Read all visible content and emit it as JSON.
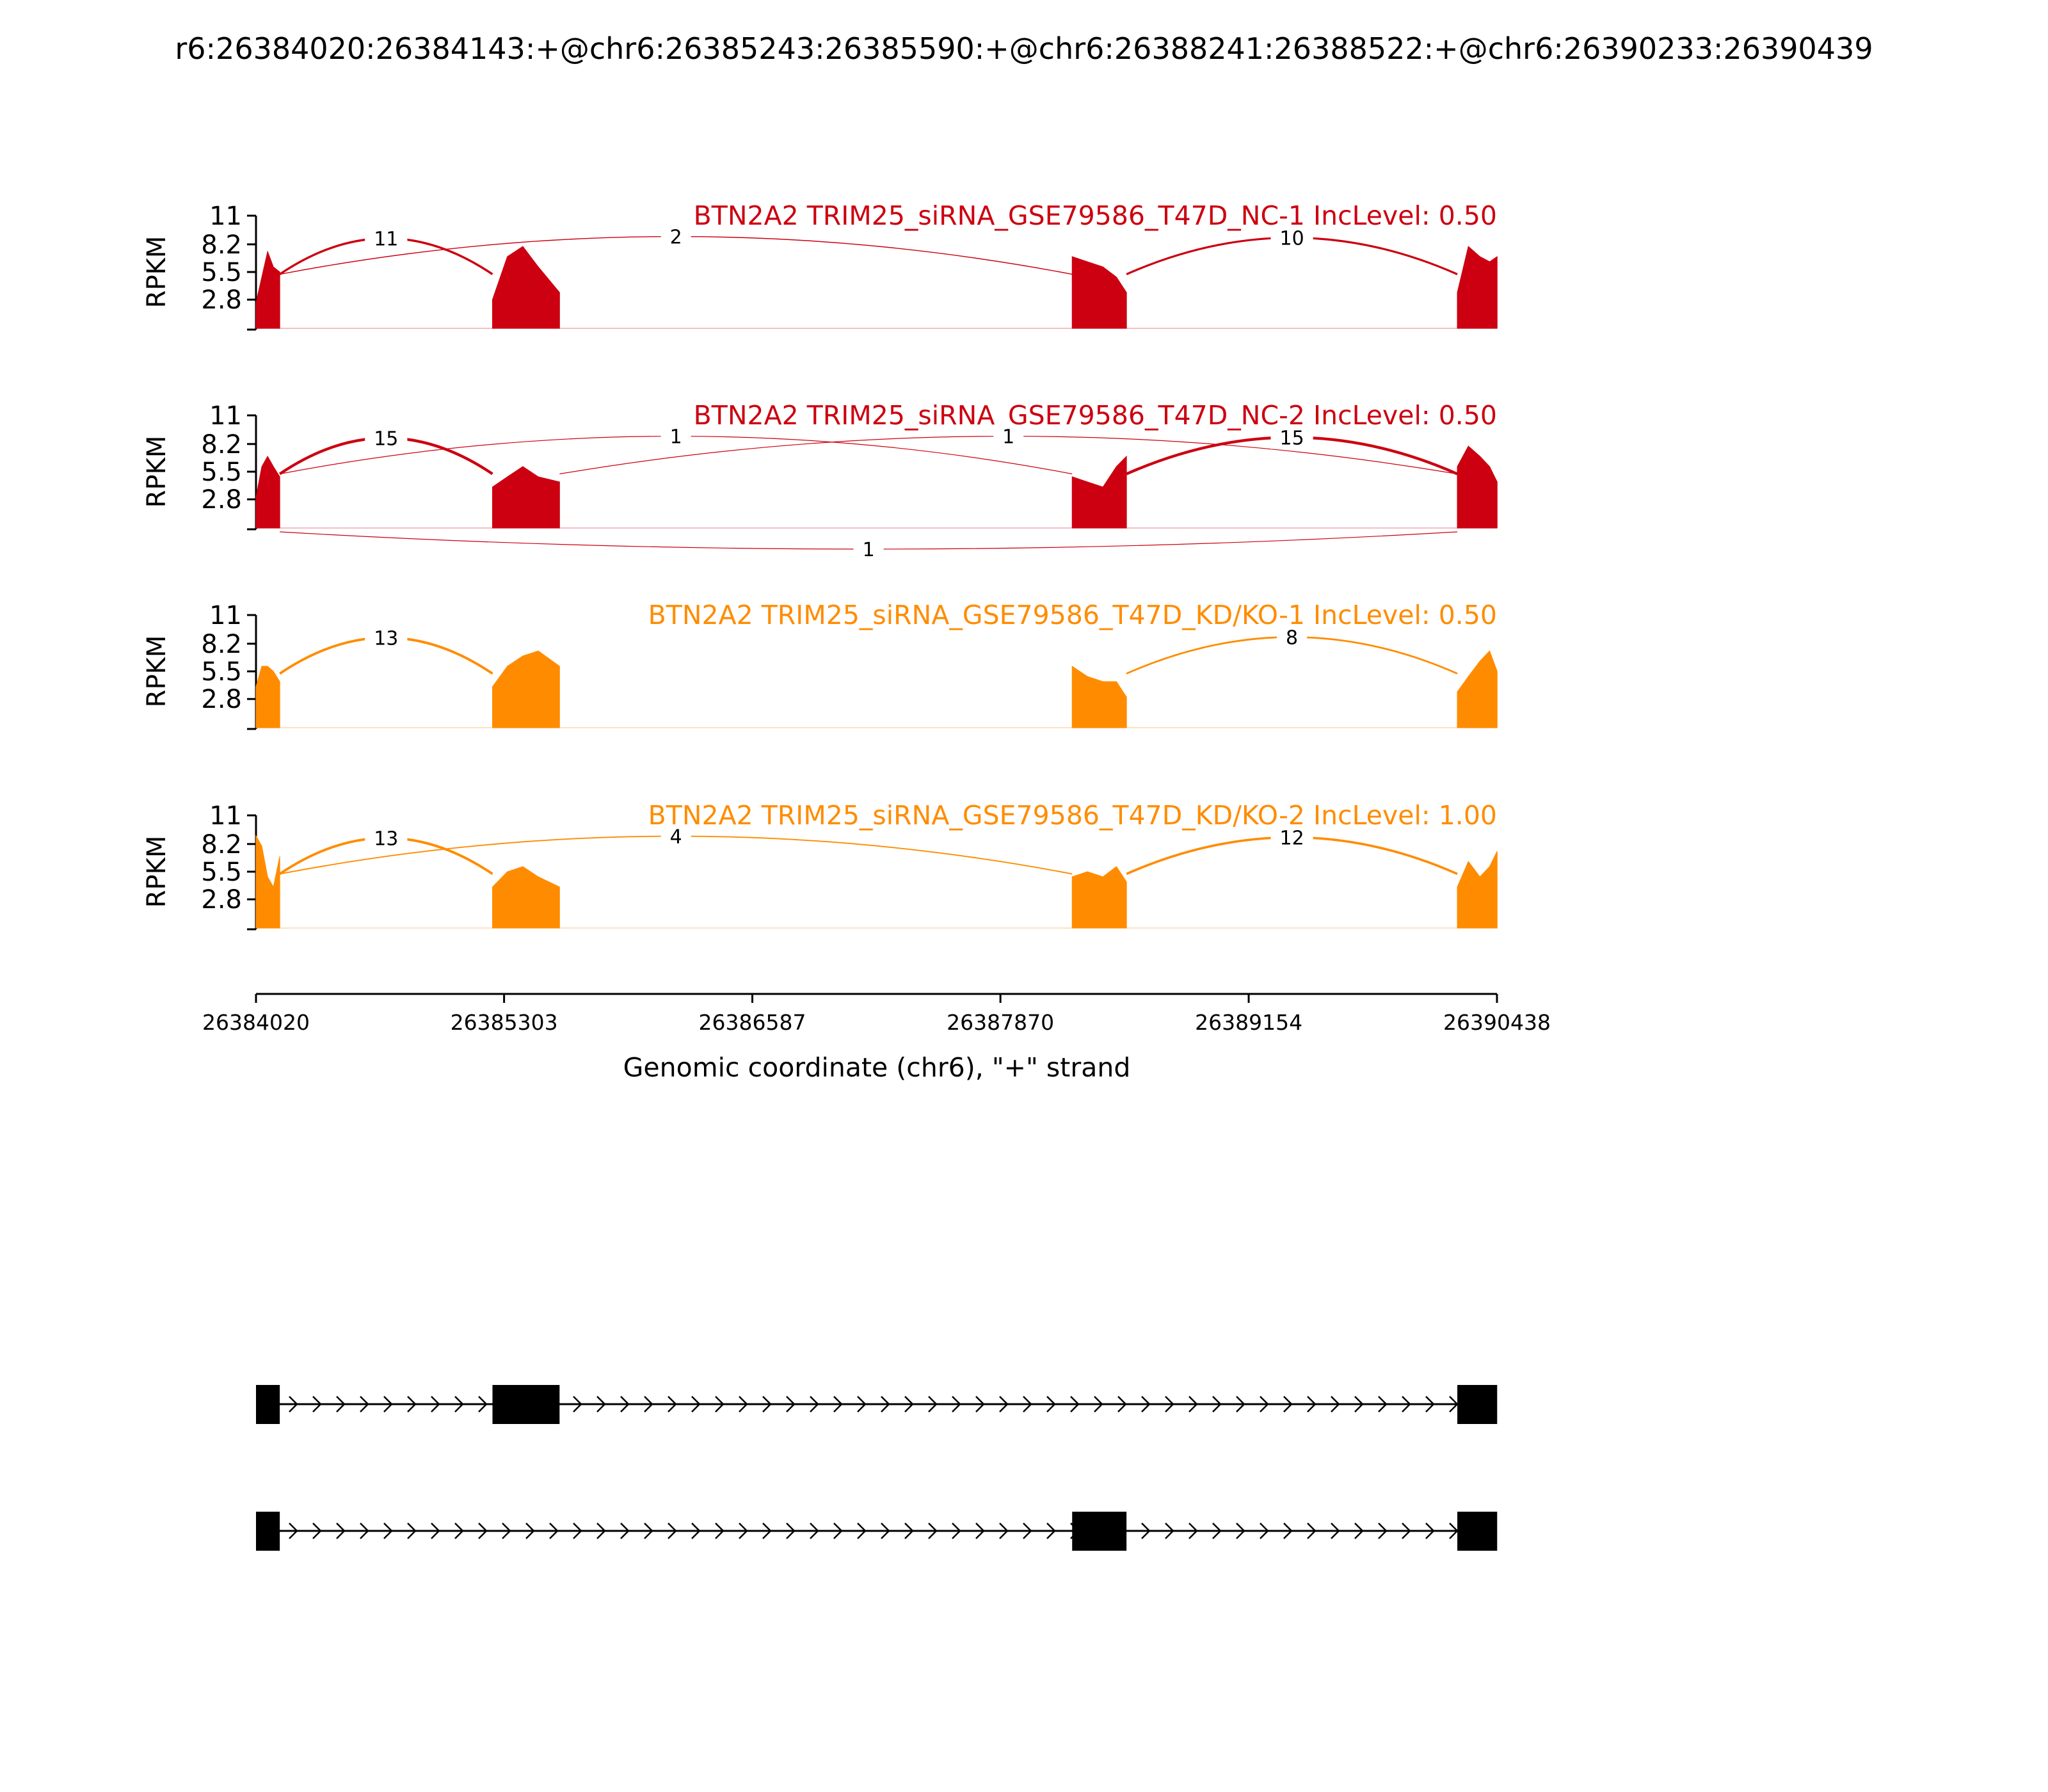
{
  "chart_data": {
    "type": "sashimi",
    "title": "r6:26384020:26384143:+@chr6:26385243:26385590:+@chr6:26388241:26388522:+@chr6:26390233:26390439",
    "xlabel": "Genomic coordinate (chr6), \"+\" strand",
    "ylabel": "RPKM",
    "xlim": [
      26384020,
      26390438
    ],
    "xticks": [
      26384020,
      26385303,
      26386587,
      26387870,
      26389154,
      26390438
    ],
    "ylim": [
      0,
      11
    ],
    "yticks": [
      2.8,
      5.5,
      8.2,
      11
    ],
    "x": [
      26384020,
      26384050,
      26384080,
      26384110,
      26384143,
      26384700,
      26385243,
      26385320,
      26385400,
      26385480,
      26385590,
      26386900,
      26388241,
      26388320,
      26388400,
      26388470,
      26388522,
      26389300,
      26390233,
      26390290,
      26390350,
      26390400,
      26390439
    ],
    "panels": [
      {
        "label": "BTN2A2 TRIM25_siRNA_GSE79586_T47D_NC-1 IncLevel: 0.50",
        "color": "#cc0010",
        "values": [
          2.5,
          5,
          7.5,
          6,
          5.5,
          null,
          2.8,
          7,
          8,
          6,
          3.5,
          null,
          7,
          6.5,
          6,
          5,
          3.5,
          null,
          3.5,
          8,
          7,
          6.5,
          7
        ],
        "junctions": [
          {
            "count": 11,
            "start": 26384143,
            "end": 26385243,
            "side": "above"
          },
          {
            "count": 2,
            "start": 26384143,
            "end": 26388241,
            "side": "above"
          },
          {
            "count": 10,
            "start": 26388522,
            "end": 26390233,
            "side": "above"
          }
        ]
      },
      {
        "label": "BTN2A2 TRIM25_siRNA_GSE79586_T47D_NC-2 IncLevel: 0.50",
        "color": "#cc0010",
        "values": [
          3,
          6,
          7,
          6,
          5,
          null,
          4,
          5,
          6,
          5,
          4.5,
          null,
          5,
          4.5,
          4,
          6,
          7,
          null,
          6,
          8,
          7,
          6,
          4.5
        ],
        "junctions": [
          {
            "count": 15,
            "start": 26384143,
            "end": 26385243,
            "side": "above"
          },
          {
            "count": 1,
            "start": 26384143,
            "end": 26388241,
            "side": "above"
          },
          {
            "count": 1,
            "start": 26385590,
            "end": 26390233,
            "side": "above"
          },
          {
            "count": 15,
            "start": 26388522,
            "end": 26390233,
            "side": "above"
          },
          {
            "count": 1,
            "start": 26384143,
            "end": 26390233,
            "side": "below"
          }
        ]
      },
      {
        "label": "BTN2A2 TRIM25_siRNA_GSE79586_T47D_KD/KO-1 IncLevel: 0.50",
        "color": "#ff8c00",
        "values": [
          4,
          6,
          6,
          5.5,
          4.5,
          null,
          4,
          6,
          7,
          7.5,
          6,
          null,
          6,
          5,
          4.5,
          4.5,
          3,
          null,
          3.5,
          5,
          6.5,
          7.5,
          5.5
        ],
        "junctions": [
          {
            "count": 13,
            "start": 26384143,
            "end": 26385243,
            "side": "above"
          },
          {
            "count": 8,
            "start": 26388522,
            "end": 26390233,
            "side": "above"
          }
        ]
      },
      {
        "label": "BTN2A2 TRIM25_siRNA_GSE79586_T47D_KD/KO-2 IncLevel: 1.00",
        "color": "#ff8c00",
        "values": [
          9,
          8,
          5,
          4,
          7,
          null,
          4,
          5.5,
          6,
          5,
          4,
          null,
          5,
          5.5,
          5,
          6,
          4.5,
          null,
          4,
          6.5,
          5,
          6,
          7.5
        ],
        "junctions": [
          {
            "count": 13,
            "start": 26384143,
            "end": 26385243,
            "side": "above"
          },
          {
            "count": 4,
            "start": 26384143,
            "end": 26388241,
            "side": "above"
          },
          {
            "count": 12,
            "start": 26388522,
            "end": 26390233,
            "side": "above"
          }
        ]
      }
    ],
    "transcripts": [
      [
        [
          26384020,
          26384143
        ],
        [
          26385243,
          26385590
        ],
        [
          26390233,
          26390439
        ]
      ],
      [
        [
          26384020,
          26384143
        ],
        [
          26388241,
          26388522
        ],
        [
          26390233,
          26390439
        ]
      ]
    ]
  }
}
